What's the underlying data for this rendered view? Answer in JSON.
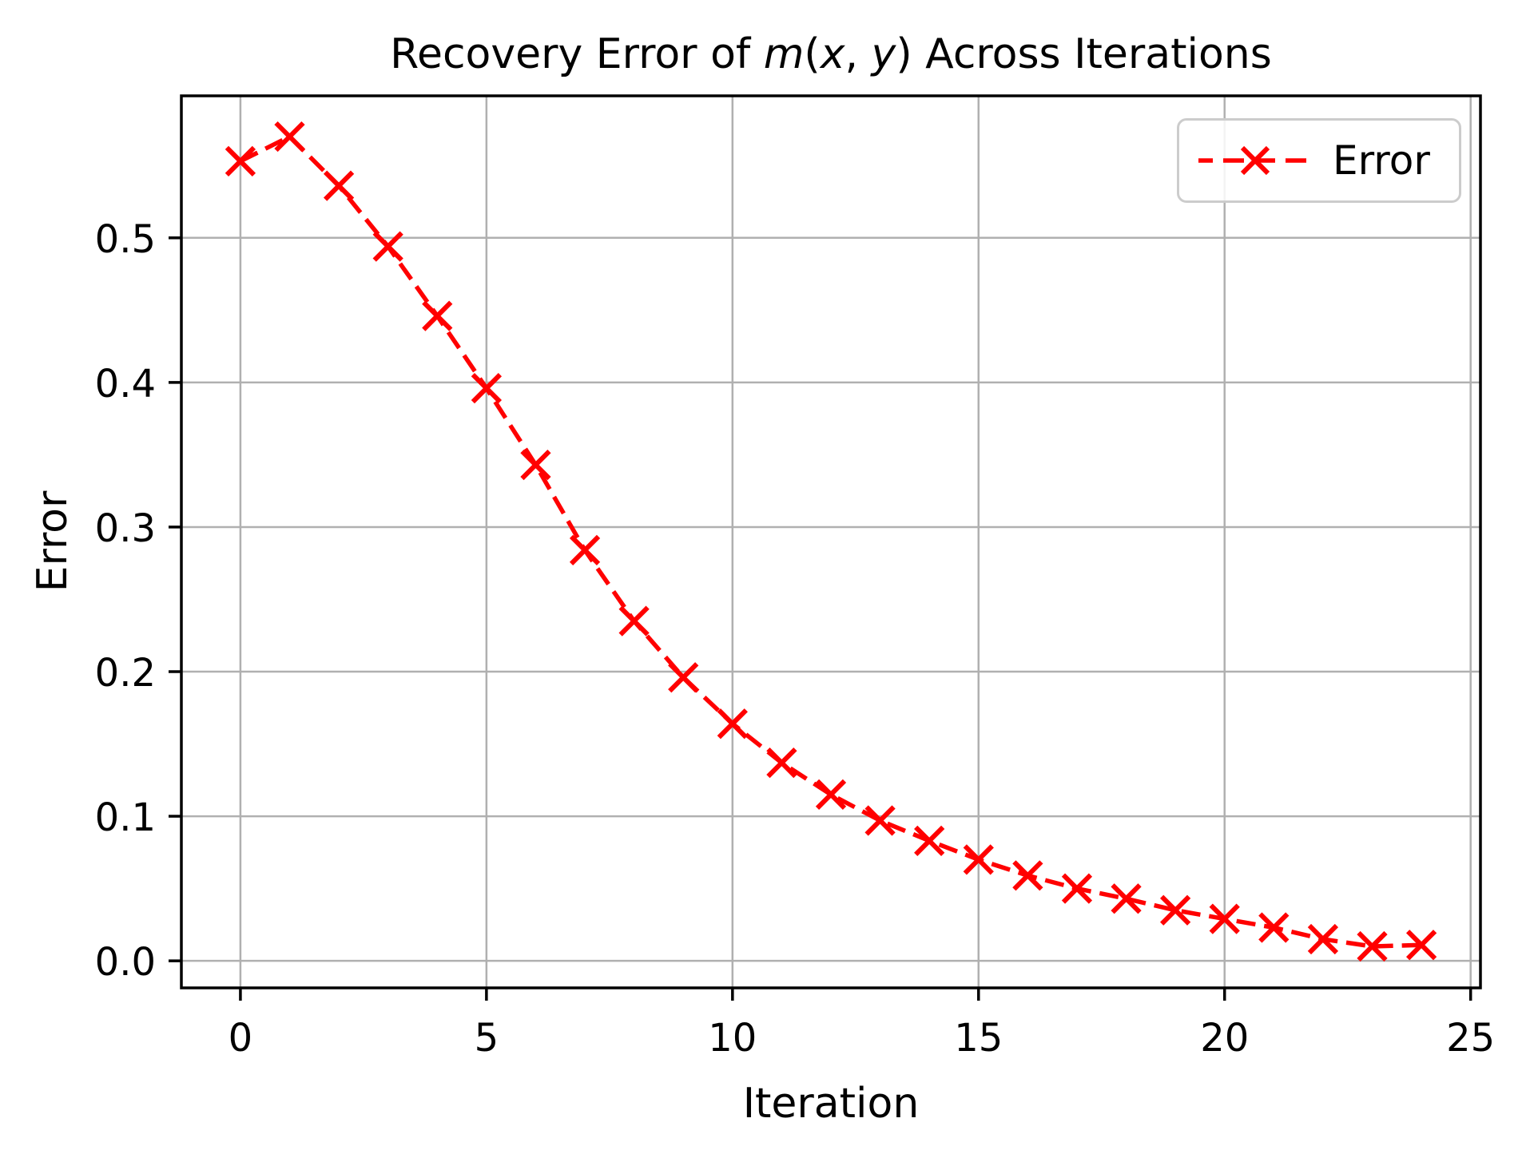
{
  "chart_data": {
    "type": "line",
    "title": {
      "prefix": "Recovery Error of ",
      "math_m": "m",
      "open_paren": "(",
      "math_x": "x",
      "comma": ", ",
      "math_y": "y",
      "close_paren": ")",
      "suffix": " Across Iterations"
    },
    "xlabel": "Iteration",
    "ylabel": "Error",
    "grid": true,
    "legend": {
      "position": "upper right",
      "entries": [
        {
          "label": "Error",
          "color": "#ff0000",
          "linestyle": "dashed",
          "marker": "x"
        }
      ]
    },
    "series": [
      {
        "name": "Error",
        "color": "#ff0000",
        "linestyle": "dashed",
        "marker": "x",
        "x": [
          0,
          1,
          2,
          3,
          4,
          5,
          6,
          7,
          8,
          9,
          10,
          11,
          12,
          13,
          14,
          15,
          16,
          17,
          18,
          19,
          20,
          21,
          22,
          23,
          24
        ],
        "y": [
          0.553,
          0.57,
          0.536,
          0.494,
          0.446,
          0.396,
          0.343,
          0.284,
          0.235,
          0.196,
          0.164,
          0.137,
          0.115,
          0.097,
          0.083,
          0.07,
          0.059,
          0.05,
          0.043,
          0.035,
          0.029,
          0.023,
          0.015,
          0.01,
          0.011
        ]
      }
    ],
    "xlim": [
      -1.2,
      25.2
    ],
    "ylim": [
      -0.0187,
      0.5982
    ],
    "xticks": [
      0,
      5,
      10,
      15,
      20,
      25
    ],
    "xtick_labels": [
      "0",
      "5",
      "10",
      "15",
      "20",
      "25"
    ],
    "yticks": [
      0.0,
      0.1,
      0.2,
      0.3,
      0.4,
      0.5
    ],
    "ytick_labels": [
      "0.0",
      "0.1",
      "0.2",
      "0.3",
      "0.4",
      "0.5"
    ],
    "colors": {
      "series": "#ff0000",
      "grid": "#b0b0b0",
      "spine": "#000000",
      "text": "#000000",
      "legend_border": "#cccccc",
      "background": "#ffffff"
    }
  }
}
